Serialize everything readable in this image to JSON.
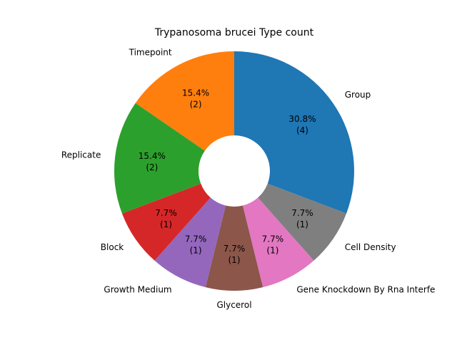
{
  "chart_data": {
    "type": "pie",
    "style": "donut",
    "title": "Trypanosoma brucei Type count",
    "start": "top",
    "direction": "clockwise",
    "slices": [
      {
        "label": "Group",
        "value": 4,
        "percent": "30.8%",
        "count_label": "(4)",
        "color": "#1f77b4"
      },
      {
        "label": "Cell Density",
        "value": 1,
        "percent": "7.7%",
        "count_label": "(1)",
        "color": "#7f7f7f"
      },
      {
        "label": "Gene Knockdown By Rna Interfe",
        "value": 1,
        "percent": "7.7%",
        "count_label": "(1)",
        "color": "#e377c2"
      },
      {
        "label": "Glycerol",
        "value": 1,
        "percent": "7.7%",
        "count_label": "(1)",
        "color": "#8c564b"
      },
      {
        "label": "Growth Medium",
        "value": 1,
        "percent": "7.7%",
        "count_label": "(1)",
        "color": "#9467bd"
      },
      {
        "label": "Block",
        "value": 1,
        "percent": "7.7%",
        "count_label": "(1)",
        "color": "#d62728"
      },
      {
        "label": "Replicate",
        "value": 2,
        "percent": "15.4%",
        "count_label": "(2)",
        "color": "#2ca02c"
      },
      {
        "label": "Timepoint",
        "value": 2,
        "percent": "15.4%",
        "count_label": "(2)",
        "color": "#ff7f0e"
      }
    ]
  }
}
